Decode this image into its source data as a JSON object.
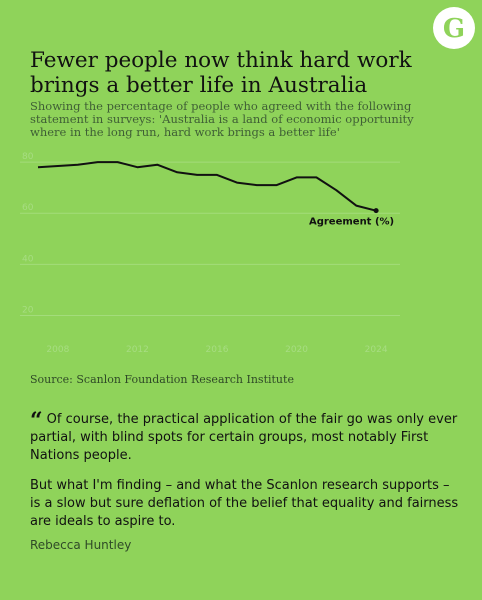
{
  "logo": {
    "letter": "G"
  },
  "title": "Fewer people now think hard work brings a better life in Australia",
  "subtitle": "Showing the percentage of people who agreed with the following statement in surveys: 'Australia is a land of economic opportunity where in the long run, hard work brings a better life'",
  "chart_data": {
    "type": "line",
    "title": "",
    "xlabel": "",
    "ylabel": "",
    "xlim": [
      2007,
      2025
    ],
    "ylim": [
      10,
      82
    ],
    "x_ticks": [
      2008,
      2012,
      2016,
      2020,
      2024
    ],
    "y_ticks": [
      20,
      40,
      60,
      80
    ],
    "grid": true,
    "series": [
      {
        "name": "Agreement (%)",
        "color": "#111111",
        "x": [
          2007,
          2009,
          2010,
          2011,
          2012,
          2013,
          2014,
          2015,
          2016,
          2017,
          2018,
          2019,
          2020,
          2021,
          2022,
          2023,
          2024
        ],
        "y": [
          78,
          79,
          80,
          80,
          78,
          79,
          76,
          75,
          75,
          72,
          71,
          71,
          74,
          74,
          69,
          63,
          61
        ]
      }
    ]
  },
  "source": "Source: Scanlon Foundation Research Institute",
  "quote": {
    "mark": "“",
    "paragraphs": [
      "Of course, the practical application of the fair go was only ever partial, with blind spots for certain groups, most notably First Nations people.",
      "But what I'm finding – and what the Scanlon research supports – is a slow but sure deflation of the belief that equality and fairness are ideals to aspire to."
    ],
    "author": "Rebecca Huntley"
  }
}
